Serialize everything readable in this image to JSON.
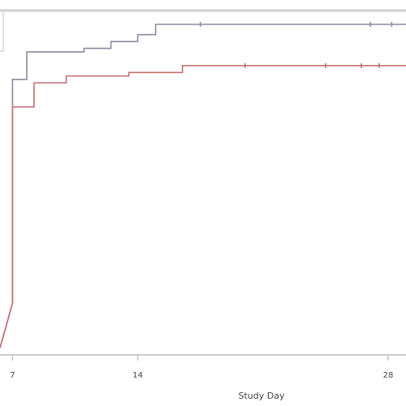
{
  "chart_data": {
    "type": "line",
    "chart_kind": "step",
    "title": "",
    "xlabel": "Study Day",
    "ylabel": "",
    "x_ticks": [
      7,
      14,
      28
    ],
    "x_tick_labels": [
      "7",
      "14",
      "28"
    ],
    "xlim": [
      6.3,
      29
    ],
    "ylim": [
      0,
      1
    ],
    "grid": false,
    "series": [
      {
        "color": "#8a8aa0",
        "steps": [
          [
            6.3,
            0.02
          ],
          [
            7.0,
            0.15
          ],
          [
            7.0,
            0.8
          ],
          [
            7.8,
            0.8
          ],
          [
            7.8,
            0.88
          ],
          [
            11.0,
            0.88
          ],
          [
            11.0,
            0.89
          ],
          [
            12.5,
            0.89
          ],
          [
            12.5,
            0.91
          ],
          [
            14.0,
            0.91
          ],
          [
            14.0,
            0.93
          ],
          [
            15.0,
            0.93
          ],
          [
            15.0,
            0.96
          ],
          [
            29.0,
            0.96
          ]
        ],
        "censor_x": [
          17.5,
          27.0,
          28.2
        ]
      },
      {
        "color": "#c07070",
        "steps": [
          [
            6.3,
            0.02
          ],
          [
            7.0,
            0.15
          ],
          [
            7.0,
            0.72
          ],
          [
            8.2,
            0.72
          ],
          [
            8.2,
            0.79
          ],
          [
            10.0,
            0.79
          ],
          [
            10.0,
            0.81
          ],
          [
            13.5,
            0.81
          ],
          [
            13.5,
            0.82
          ],
          [
            16.5,
            0.82
          ],
          [
            16.5,
            0.84
          ],
          [
            29.0,
            0.84
          ]
        ],
        "censor_x": [
          20.0,
          24.5,
          26.5,
          27.5
        ]
      }
    ],
    "colors": {
      "axis": "#bbbbbb",
      "frame": "#cfcfcf",
      "tick_text": "#444444"
    }
  }
}
